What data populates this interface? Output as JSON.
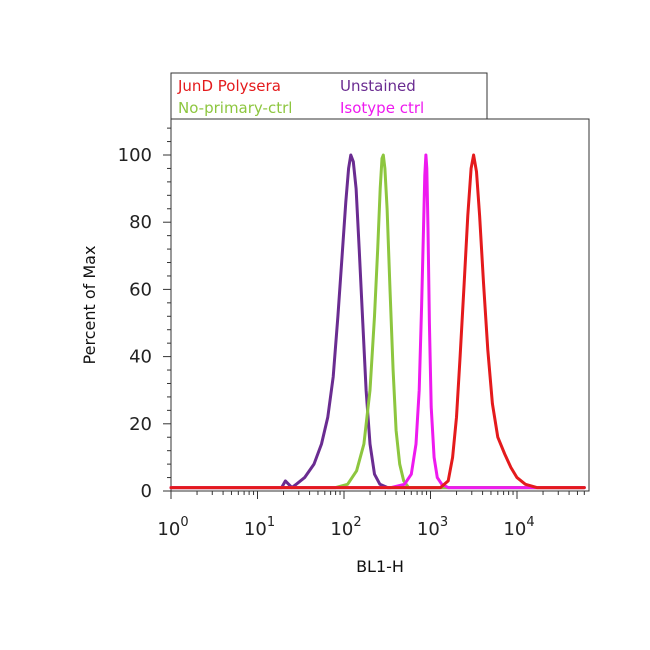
{
  "chart_data": {
    "type": "line",
    "title": "",
    "xlabel": "BL1-H",
    "ylabel": "Percent of Max",
    "xscale": "log",
    "xlim": [
      1,
      60000
    ],
    "ylim": [
      0,
      110
    ],
    "grid": false,
    "legend_placement": "top",
    "x_ticks": [
      {
        "value": 1,
        "base": "10",
        "exp": "0"
      },
      {
        "value": 10,
        "base": "10",
        "exp": "1"
      },
      {
        "value": 100,
        "base": "10",
        "exp": "2"
      },
      {
        "value": 1000,
        "base": "10",
        "exp": "3"
      },
      {
        "value": 10000,
        "base": "10",
        "exp": "4"
      }
    ],
    "y_ticks": [
      {
        "value": 0,
        "label": "0"
      },
      {
        "value": 20,
        "label": "20"
      },
      {
        "value": 40,
        "label": "40"
      },
      {
        "value": 60,
        "label": "60"
      },
      {
        "value": 80,
        "label": "80"
      },
      {
        "value": 100,
        "label": "100"
      }
    ],
    "series": [
      {
        "name": "Unstained",
        "color": "#6a2c91",
        "points": [
          [
            1,
            1
          ],
          [
            15,
            1
          ],
          [
            19,
            1
          ],
          [
            21,
            3
          ],
          [
            25,
            1
          ],
          [
            28,
            2
          ],
          [
            35,
            4
          ],
          [
            45,
            8
          ],
          [
            55,
            14
          ],
          [
            65,
            22
          ],
          [
            75,
            34
          ],
          [
            85,
            52
          ],
          [
            95,
            70
          ],
          [
            105,
            86
          ],
          [
            113,
            96
          ],
          [
            120,
            100
          ],
          [
            128,
            98
          ],
          [
            138,
            90
          ],
          [
            150,
            72
          ],
          [
            165,
            50
          ],
          [
            180,
            30
          ],
          [
            200,
            14
          ],
          [
            225,
            5
          ],
          [
            260,
            2
          ],
          [
            320,
            1
          ],
          [
            60000,
            1
          ]
        ]
      },
      {
        "name": "No-primary-ctrl",
        "color": "#8dc63f",
        "points": [
          [
            1,
            1
          ],
          [
            80,
            1
          ],
          [
            110,
            2
          ],
          [
            140,
            6
          ],
          [
            170,
            14
          ],
          [
            200,
            30
          ],
          [
            225,
            52
          ],
          [
            245,
            72
          ],
          [
            262,
            90
          ],
          [
            275,
            99
          ],
          [
            285,
            100
          ],
          [
            297,
            96
          ],
          [
            315,
            84
          ],
          [
            340,
            60
          ],
          [
            370,
            36
          ],
          [
            400,
            18
          ],
          [
            440,
            8
          ],
          [
            490,
            3
          ],
          [
            560,
            1
          ],
          [
            60000,
            1
          ]
        ]
      },
      {
        "name": "Isotype ctrl",
        "color": "#ee1aef",
        "points": [
          [
            1,
            1
          ],
          [
            350,
            1
          ],
          [
            500,
            2
          ],
          [
            600,
            5
          ],
          [
            680,
            14
          ],
          [
            740,
            30
          ],
          [
            790,
            55
          ],
          [
            830,
            78
          ],
          [
            860,
            94
          ],
          [
            885,
            100
          ],
          [
            905,
            96
          ],
          [
            935,
            78
          ],
          [
            970,
            50
          ],
          [
            1020,
            25
          ],
          [
            1100,
            10
          ],
          [
            1200,
            4
          ],
          [
            1350,
            2
          ],
          [
            1600,
            1
          ],
          [
            60000,
            1
          ]
        ]
      },
      {
        "name": "JunD Polysera",
        "color": "#e41a1c",
        "points": [
          [
            1,
            1
          ],
          [
            1300,
            1
          ],
          [
            1600,
            3
          ],
          [
            1800,
            10
          ],
          [
            2000,
            22
          ],
          [
            2200,
            40
          ],
          [
            2450,
            62
          ],
          [
            2700,
            82
          ],
          [
            2950,
            96
          ],
          [
            3150,
            100
          ],
          [
            3400,
            95
          ],
          [
            3700,
            82
          ],
          [
            4100,
            62
          ],
          [
            4600,
            42
          ],
          [
            5200,
            26
          ],
          [
            6000,
            16
          ],
          [
            7200,
            11
          ],
          [
            8500,
            7
          ],
          [
            10000,
            4
          ],
          [
            12500,
            2
          ],
          [
            17000,
            1
          ],
          [
            60000,
            1
          ]
        ]
      }
    ],
    "legend": [
      {
        "name": "JunD Polysera",
        "color": "#e41a1c"
      },
      {
        "name": "Unstained",
        "color": "#6a2c91"
      },
      {
        "name": "No-primary-ctrl",
        "color": "#8dc63f"
      },
      {
        "name": "Isotype ctrl",
        "color": "#ee1aef"
      }
    ]
  }
}
